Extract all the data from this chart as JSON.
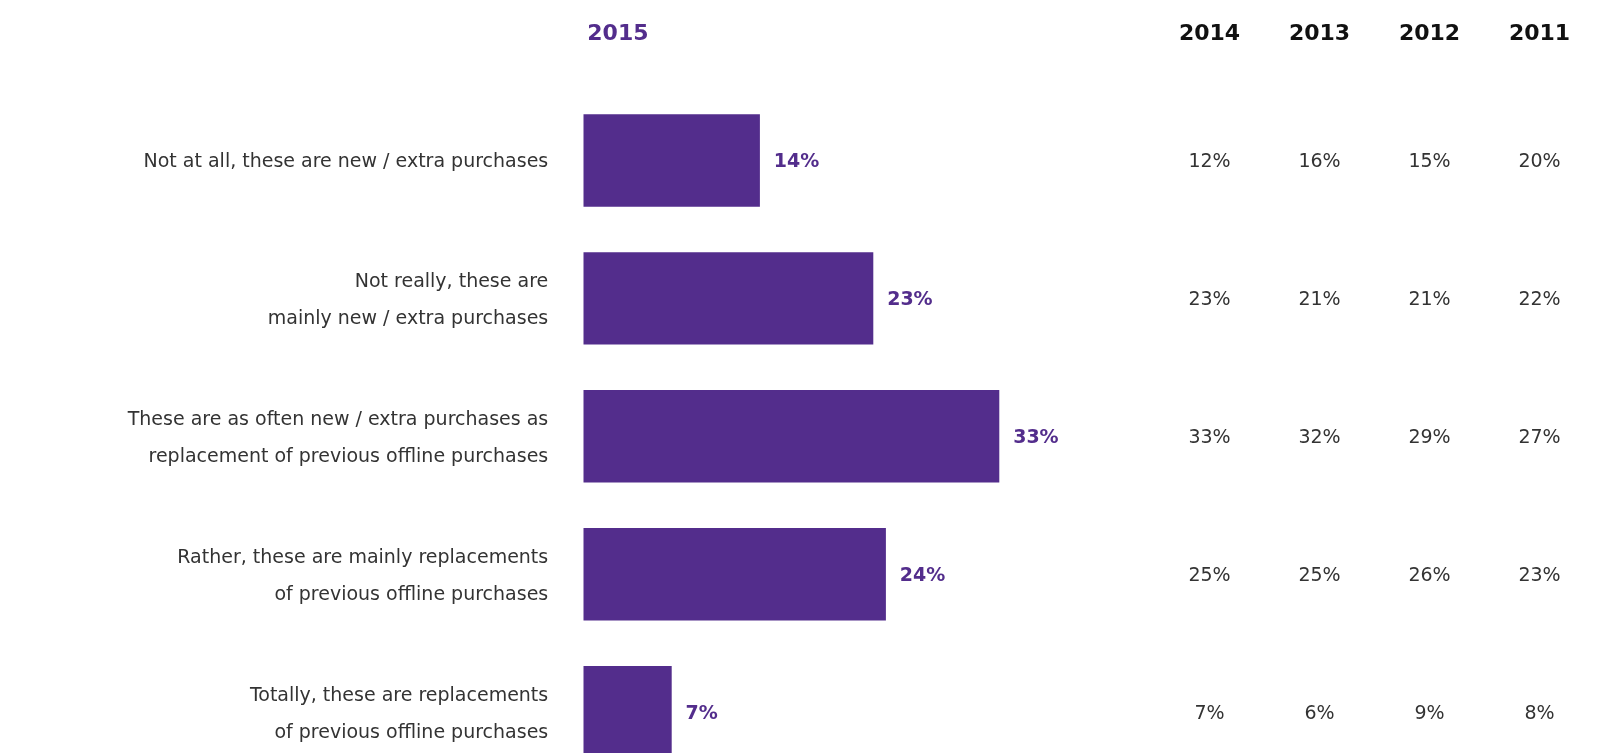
{
  "chart_data": [
    {
      "type": "bar",
      "orientation": "horizontal",
      "tick_labels": "y",
      "grid": false,
      "data_labels": true,
      "categories": [
        "Not at all, these are new / extra purchases",
        "Not really, these are mainly new / extra purchases",
        "These are as often new / extra purchases as replacement of previous offline purchases",
        "Rather, these are mainly replacements of previous offline purchases",
        "Totally, these are replacements of previous offline purchases"
      ],
      "series": [
        {
          "name": "2015",
          "type": "bar",
          "color": "#532d8c",
          "values": [
            14,
            23,
            33,
            24,
            7
          ],
          "value_labels": [
            "14%",
            "23%",
            "33%",
            "24%",
            "7%"
          ]
        }
      ]
    },
    {
      "type": "heatmap",
      "categories": [
        "2014",
        "2013",
        "2012",
        "2011"
      ],
      "y_categories": [
        null,
        null,
        null,
        null,
        null
      ],
      "cells": [
        [
          12,
          16,
          15,
          20
        ],
        [
          23,
          21,
          21,
          22
        ],
        [
          33,
          32,
          29,
          27
        ],
        [
          25,
          25,
          26,
          23
        ],
        [
          7,
          6,
          9,
          8
        ]
      ],
      "cell_labels": [
        [
          "12%",
          "16%",
          "15%",
          "20%"
        ],
        [
          "23%",
          "21%",
          "21%",
          "22%"
        ],
        [
          "33%",
          "32%",
          "29%",
          "27%"
        ],
        [
          "25%",
          "25%",
          "26%",
          "23%"
        ],
        [
          "7%",
          "6%",
          "9%",
          "8%"
        ]
      ]
    }
  ]
}
